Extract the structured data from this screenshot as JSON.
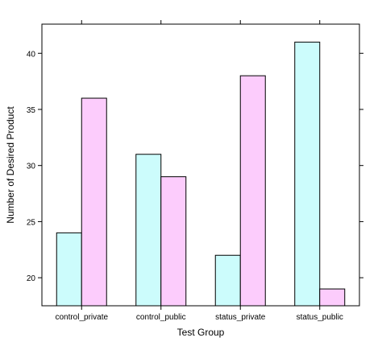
{
  "chart_data": {
    "type": "bar",
    "title": "",
    "xlabel": "Test Group",
    "ylabel": "Number of Desired Product",
    "categories": [
      "control_private",
      "control_public",
      "status_private",
      "status_public"
    ],
    "series": [
      {
        "values": [
          24,
          31,
          22,
          41
        ],
        "color": "#ccfcfc"
      },
      {
        "values": [
          36,
          29,
          38,
          19
        ],
        "color": "#fcccfc"
      }
    ],
    "ylim": [
      17.5,
      42.6
    ],
    "yticks": [
      20,
      25,
      30,
      35,
      40
    ],
    "grid": false,
    "legend": "none"
  }
}
